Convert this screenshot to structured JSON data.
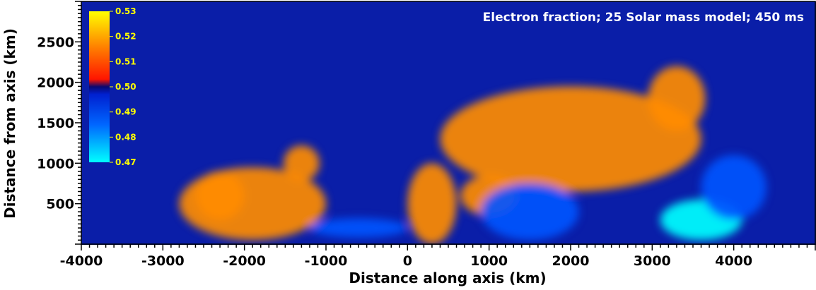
{
  "chart_data": {
    "type": "heatmap",
    "title": "Electron fraction; 25 Solar mass model; 450 ms",
    "xlabel": "Distance along axis (km)",
    "ylabel": "Distance from axis (km)",
    "xlim": [
      -4000,
      5000
    ],
    "ylim": [
      0,
      3000
    ],
    "x_ticks": [
      -4000,
      -3000,
      -2000,
      -1000,
      0,
      1000,
      2000,
      3000,
      4000
    ],
    "x_tick_labels": [
      "-4000",
      "-3000",
      "-2000",
      "-1000",
      "0",
      "1000",
      "2000",
      "3000",
      "4000"
    ],
    "y_ticks": [
      500,
      1000,
      1500,
      2000,
      2500
    ],
    "y_tick_labels": [
      "500",
      "1000",
      "1500",
      "2000",
      "2500"
    ],
    "colorbar": {
      "min": 0.47,
      "max": 0.53,
      "ticks": [
        0.53,
        0.52,
        0.51,
        0.5,
        0.49,
        0.48,
        0.47
      ],
      "tick_labels": [
        "0.53",
        "0.52",
        "0.51",
        "0.50",
        "0.49",
        "0.48",
        "0.47"
      ],
      "placement": "top-left-inside"
    },
    "colors": {
      "background": "#0a1ea8",
      "low": "#00ffff",
      "mid_low": "#0055ff",
      "mid": "#0a0a8c",
      "mid_high": "#ff1a00",
      "high": "#ff8c00",
      "max": "#ffff00"
    },
    "features": [
      {
        "value": 0.515,
        "x": -1900,
        "y": 500,
        "rx": 900,
        "ry": 450
      },
      {
        "value": 0.52,
        "x": -2300,
        "y": 600,
        "rx": 300,
        "ry": 300
      },
      {
        "value": 0.512,
        "x": -1300,
        "y": 1000,
        "rx": 220,
        "ry": 220
      },
      {
        "value": 0.513,
        "x": 2000,
        "y": 1300,
        "rx": 1600,
        "ry": 650
      },
      {
        "value": 0.512,
        "x": 3300,
        "y": 1800,
        "rx": 350,
        "ry": 400
      },
      {
        "value": 0.51,
        "x": 300,
        "y": 500,
        "rx": 300,
        "ry": 500
      },
      {
        "value": 0.51,
        "x": 1000,
        "y": 600,
        "rx": 350,
        "ry": 250
      },
      {
        "value": 0.48,
        "x": 3600,
        "y": 300,
        "rx": 500,
        "ry": 250
      },
      {
        "value": 0.485,
        "x": 1500,
        "y": 400,
        "rx": 600,
        "ry": 350
      },
      {
        "value": 0.49,
        "x": -600,
        "y": 200,
        "rx": 600,
        "ry": 120
      },
      {
        "value": 0.49,
        "x": 4000,
        "y": 700,
        "rx": 400,
        "ry": 400
      }
    ]
  }
}
